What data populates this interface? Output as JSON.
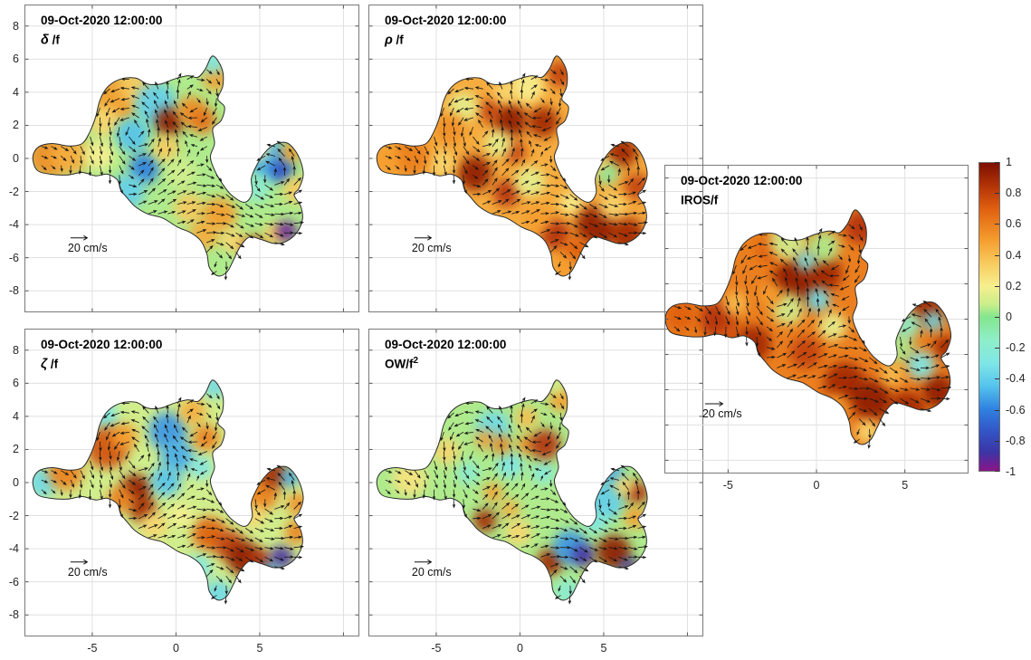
{
  "window": {
    "background": "#ffffff"
  },
  "figure": {
    "timestamp": "09-Oct-2020 12:00:00",
    "scale_label": "20 cm/s"
  },
  "panels": [
    {
      "id": "delta",
      "symbol": "δ",
      "label": " /f",
      "sup": ""
    },
    {
      "id": "rho",
      "symbol": "ρ",
      "label": " /f",
      "sup": ""
    },
    {
      "id": "zeta",
      "symbol": "ζ",
      "label": " /f",
      "sup": ""
    },
    {
      "id": "ow",
      "symbol": "",
      "label": "OW/f",
      "sup": "2"
    },
    {
      "id": "iros",
      "symbol": "",
      "label": "IROS/f",
      "sup": ""
    }
  ],
  "axes": {
    "x_tick_labels": [
      "-5",
      "0",
      "5"
    ],
    "y_tick_labels": [
      "8",
      "6",
      "4",
      "2",
      "0",
      "-2",
      "-4",
      "-6",
      "-8"
    ]
  },
  "colorbar": {
    "tick_labels": [
      "1",
      "0.8",
      "0.6",
      "0.4",
      "0.2",
      "0",
      "-0.2",
      "-0.4",
      "-0.6",
      "-0.8",
      "-1"
    ],
    "tick_values": [
      1,
      0.8,
      0.6,
      0.4,
      0.2,
      0,
      -0.2,
      -0.4,
      -0.6,
      -0.8,
      -1
    ],
    "colormap": [
      {
        "v": 1.0,
        "c": "#7c1000"
      },
      {
        "v": 0.85,
        "c": "#b33307"
      },
      {
        "v": 0.7,
        "c": "#e06010"
      },
      {
        "v": 0.5,
        "c": "#f59d2e"
      },
      {
        "v": 0.35,
        "c": "#f8ca5e"
      },
      {
        "v": 0.2,
        "c": "#f7ef8e"
      },
      {
        "v": 0.08,
        "c": "#c9ee8b"
      },
      {
        "v": 0.0,
        "c": "#84e68e"
      },
      {
        "v": -0.15,
        "c": "#8feec8"
      },
      {
        "v": -0.3,
        "c": "#7fe6e6"
      },
      {
        "v": -0.45,
        "c": "#55c3ec"
      },
      {
        "v": -0.6,
        "c": "#2f81e0"
      },
      {
        "v": -0.75,
        "c": "#3353c4"
      },
      {
        "v": -0.88,
        "c": "#3c35a5"
      },
      {
        "v": -1.0,
        "c": "#8a1589"
      }
    ]
  },
  "chart_data": {
    "type": "heatmap",
    "subtype": "quiver_vector_field_maps",
    "title": "09-Oct-2020 12:00:00",
    "value_range": [
      -1,
      1
    ],
    "x_ticks": [
      -5,
      0,
      5
    ],
    "y_ticks": [
      8,
      6,
      4,
      2,
      0,
      -2,
      -4,
      -6,
      -8
    ],
    "colorbar_ticks": [
      1,
      0.8,
      0.6,
      0.4,
      0.2,
      0,
      -0.2,
      -0.4,
      -0.6,
      -0.8,
      -1
    ],
    "velocity_scale": "20 cm/s",
    "legend_position": "right",
    "grid": true,
    "panels": [
      {
        "variable": "δ/f",
        "base": 0.05,
        "features": [
          [
            -7.6,
            0.1,
            1.1,
            0.55
          ],
          [
            -6.3,
            0.2,
            1.0,
            0.45
          ],
          [
            -3.6,
            3.6,
            1.2,
            0.5
          ],
          [
            -2.3,
            4.3,
            0.9,
            0.35
          ],
          [
            -4.3,
            2.2,
            0.8,
            0.3
          ],
          [
            -1.2,
            3.3,
            1.1,
            -0.4
          ],
          [
            -0.4,
            2.2,
            0.75,
            0.95
          ],
          [
            0.9,
            2.9,
            0.75,
            0.55
          ],
          [
            1.6,
            2.3,
            0.7,
            0.65
          ],
          [
            2.4,
            4.9,
            0.7,
            0.5
          ],
          [
            2.2,
            5.8,
            0.6,
            -0.3
          ],
          [
            -2.6,
            1.4,
            0.9,
            -0.45
          ],
          [
            -1.9,
            -0.6,
            0.8,
            -0.6
          ],
          [
            -2.9,
            -2.0,
            0.9,
            -0.4
          ],
          [
            -0.6,
            0.6,
            0.7,
            0.35
          ],
          [
            -4.6,
            0.2,
            0.8,
            0.2
          ],
          [
            0.3,
            -0.9,
            0.8,
            0.1
          ],
          [
            0.8,
            -3.0,
            0.8,
            0.35
          ],
          [
            2.6,
            -3.4,
            0.9,
            0.5
          ],
          [
            1.7,
            -4.6,
            0.8,
            0.45
          ],
          [
            3.4,
            -5.0,
            0.7,
            0.3
          ],
          [
            4.7,
            -5.5,
            0.7,
            0.8
          ],
          [
            5.9,
            -4.6,
            0.6,
            0.35
          ],
          [
            6.6,
            -4.4,
            0.55,
            -0.95
          ],
          [
            2.6,
            -6.6,
            0.8,
            0.05
          ],
          [
            5.6,
            -0.1,
            1.1,
            -0.5
          ],
          [
            6.3,
            -0.7,
            0.6,
            -0.75
          ],
          [
            6.9,
            0.4,
            0.55,
            0.5
          ],
          [
            7.2,
            -1.9,
            0.7,
            0.35
          ],
          [
            4.8,
            -1.8,
            0.7,
            -0.2
          ],
          [
            4.9,
            0.6,
            0.6,
            0.2
          ]
        ]
      },
      {
        "variable": "ρ/f",
        "base": 0.45,
        "features": [
          [
            -0.6,
            2.3,
            0.9,
            0.95
          ],
          [
            1.4,
            2.2,
            0.8,
            0.9
          ],
          [
            -1.8,
            2.9,
            0.6,
            0.8
          ],
          [
            -2.7,
            -0.9,
            0.9,
            0.95
          ],
          [
            -0.3,
            0.4,
            0.6,
            0.8
          ],
          [
            -0.8,
            -2.1,
            0.7,
            0.85
          ],
          [
            2.4,
            5.1,
            0.7,
            0.8
          ],
          [
            -3.4,
            3.1,
            0.8,
            0.15
          ],
          [
            0.4,
            4.4,
            0.9,
            0.2
          ],
          [
            -0.9,
            4.0,
            0.6,
            0.3
          ],
          [
            -1.3,
            0.9,
            0.7,
            0.15
          ],
          [
            0.6,
            -1.4,
            0.8,
            0.15
          ],
          [
            3.1,
            -2.7,
            0.6,
            0.2
          ],
          [
            -4.7,
            -0.3,
            0.7,
            0.3
          ],
          [
            -6.5,
            0.1,
            1.0,
            0.6
          ],
          [
            -8.0,
            -0.1,
            0.7,
            0.5
          ],
          [
            -4.2,
            1.8,
            0.8,
            0.55
          ],
          [
            6.1,
            0.4,
            0.8,
            0.9
          ],
          [
            5.2,
            -0.9,
            0.6,
            -0.05
          ],
          [
            7.0,
            -1.7,
            0.7,
            0.8
          ],
          [
            4.6,
            -4.1,
            1.1,
            0.95
          ],
          [
            6.4,
            -4.6,
            0.9,
            0.9
          ],
          [
            2.1,
            -4.6,
            0.8,
            0.85
          ],
          [
            3.4,
            -5.6,
            0.8,
            0.7
          ],
          [
            1.0,
            -3.6,
            0.7,
            0.5
          ],
          [
            2.7,
            -6.8,
            0.7,
            0.5
          ],
          [
            5.5,
            -2.9,
            0.7,
            0.3
          ],
          [
            4.4,
            -0.2,
            0.6,
            0.3
          ]
        ]
      },
      {
        "variable": "ζ/f",
        "base": 0.1,
        "features": [
          [
            -4.2,
            4.1,
            0.9,
            -0.3
          ],
          [
            -2.7,
            4.4,
            0.8,
            0.1
          ],
          [
            -8.0,
            0.0,
            0.8,
            -0.35
          ],
          [
            -6.6,
            0.6,
            0.9,
            0.6
          ],
          [
            -4.1,
            2.1,
            1.1,
            0.75
          ],
          [
            -3.1,
            2.8,
            0.7,
            0.5
          ],
          [
            -2.4,
            -0.4,
            0.8,
            0.95
          ],
          [
            -2.0,
            -1.6,
            0.7,
            0.9
          ],
          [
            -3.3,
            -1.0,
            0.7,
            0.6
          ],
          [
            -0.5,
            3.1,
            1.0,
            -0.55
          ],
          [
            0.1,
            1.6,
            0.9,
            -0.5
          ],
          [
            -0.6,
            0.1,
            0.8,
            -0.45
          ],
          [
            1.0,
            4.3,
            0.7,
            0.45
          ],
          [
            2.3,
            5.8,
            0.6,
            -0.35
          ],
          [
            1.8,
            2.7,
            0.7,
            0.6
          ],
          [
            1.5,
            0.9,
            0.6,
            -0.3
          ],
          [
            -1.3,
            -2.6,
            0.7,
            0.3
          ],
          [
            2.0,
            -3.1,
            0.9,
            0.7
          ],
          [
            3.2,
            -3.8,
            0.8,
            0.8
          ],
          [
            4.1,
            -4.6,
            0.9,
            0.95
          ],
          [
            5.0,
            -4.9,
            0.7,
            0.85
          ],
          [
            6.3,
            -4.5,
            0.6,
            -0.9
          ],
          [
            5.6,
            -5.4,
            0.5,
            -0.5
          ],
          [
            2.5,
            -6.8,
            0.8,
            -0.35
          ],
          [
            1.3,
            -5.2,
            0.7,
            -0.3
          ],
          [
            5.0,
            -0.6,
            1.0,
            0.6
          ],
          [
            5.9,
            0.5,
            0.7,
            0.9
          ],
          [
            6.8,
            0.3,
            0.5,
            -0.5
          ],
          [
            7.3,
            -1.3,
            0.6,
            0.55
          ],
          [
            7.2,
            -3.0,
            0.6,
            0.6
          ],
          [
            4.6,
            -2.0,
            0.6,
            0.3
          ],
          [
            0.3,
            -2.0,
            0.6,
            0.2
          ]
        ]
      },
      {
        "variable": "OW/f^2",
        "base": 0.05,
        "features": [
          [
            -1.6,
            3.3,
            0.9,
            -0.35
          ],
          [
            -0.6,
            1.1,
            0.7,
            -0.3
          ],
          [
            -3.1,
            0.6,
            0.6,
            -0.2
          ],
          [
            1.4,
            0.6,
            0.6,
            -0.25
          ],
          [
            -1.1,
            2.3,
            0.5,
            0.6
          ],
          [
            -2.1,
            2.6,
            0.5,
            0.5
          ],
          [
            0.4,
            2.3,
            0.5,
            0.55
          ],
          [
            1.5,
            2.3,
            0.8,
            0.85
          ],
          [
            -1.6,
            -0.6,
            0.5,
            0.5
          ],
          [
            -0.6,
            -1.6,
            0.5,
            0.45
          ],
          [
            0.4,
            3.9,
            0.6,
            0.4
          ],
          [
            -2.1,
            -2.3,
            0.6,
            0.9
          ],
          [
            2.5,
            5.1,
            0.7,
            0.5
          ],
          [
            2.2,
            5.9,
            0.5,
            0.1
          ],
          [
            -6.6,
            0.2,
            0.9,
            0.25
          ],
          [
            -4.4,
            1.9,
            0.7,
            0.3
          ],
          [
            -0.1,
            -3.0,
            0.7,
            0.3
          ],
          [
            1.8,
            -4.8,
            0.7,
            0.9
          ],
          [
            3.0,
            -3.9,
            0.9,
            -0.55
          ],
          [
            3.8,
            -4.4,
            0.6,
            -0.9
          ],
          [
            5.6,
            -4.2,
            0.9,
            0.95
          ],
          [
            6.5,
            -5.1,
            0.5,
            -0.85
          ],
          [
            6.9,
            -5.7,
            0.5,
            0.6
          ],
          [
            4.6,
            -5.7,
            0.6,
            0.6
          ],
          [
            2.8,
            -6.6,
            0.7,
            -0.2
          ],
          [
            5.1,
            -1.1,
            1.0,
            -0.4
          ],
          [
            5.6,
            0.4,
            0.6,
            -0.5
          ],
          [
            7.0,
            -0.6,
            0.6,
            0.85
          ],
          [
            6.9,
            -2.1,
            0.6,
            0.5
          ],
          [
            4.5,
            -2.4,
            0.6,
            -0.3
          ],
          [
            6.2,
            -0.2,
            0.5,
            0.3
          ]
        ]
      },
      {
        "variable": "IROS/f",
        "base": 0.6,
        "features": [
          [
            -1.1,
            2.1,
            1.2,
            0.95
          ],
          [
            0.4,
            2.6,
            0.9,
            0.9
          ],
          [
            -5.6,
            0.0,
            0.9,
            0.85
          ],
          [
            -7.7,
            0.2,
            0.8,
            0.7
          ],
          [
            -3.6,
            -1.4,
            0.9,
            0.9
          ],
          [
            -2.6,
            3.9,
            0.7,
            0.7
          ],
          [
            2.5,
            5.2,
            0.8,
            0.85
          ],
          [
            -1.6,
            4.4,
            0.9,
            0.1
          ],
          [
            0.4,
            4.1,
            0.8,
            0.05
          ],
          [
            -0.6,
            3.3,
            0.5,
            -0.3
          ],
          [
            0.1,
            1.1,
            0.6,
            -0.35
          ],
          [
            -1.6,
            0.6,
            0.8,
            0.1
          ],
          [
            0.9,
            -0.4,
            0.7,
            0.15
          ],
          [
            -0.6,
            -1.9,
            0.8,
            0.8
          ],
          [
            -4.6,
            0.9,
            0.6,
            0.4
          ],
          [
            -2.6,
            1.4,
            0.6,
            0.5
          ],
          [
            1.6,
            -3.6,
            1.0,
            0.9
          ],
          [
            3.1,
            -4.6,
            1.0,
            0.95
          ],
          [
            5.1,
            -5.1,
            0.9,
            0.9
          ],
          [
            6.9,
            -4.1,
            0.8,
            0.95
          ],
          [
            7.3,
            -1.6,
            0.6,
            0.9
          ],
          [
            6.3,
            0.6,
            0.8,
            0.9
          ],
          [
            4.6,
            -1.6,
            0.8,
            0.05
          ],
          [
            5.1,
            -0.3,
            0.7,
            -0.15
          ],
          [
            5.9,
            -2.6,
            0.7,
            -0.3
          ],
          [
            6.6,
            -0.1,
            0.5,
            -0.35
          ],
          [
            2.9,
            -6.4,
            0.6,
            0.3
          ],
          [
            1.1,
            -4.9,
            0.6,
            0.5
          ],
          [
            4.3,
            -3.1,
            0.6,
            0.4
          ],
          [
            -4.9,
            -1.0,
            0.6,
            0.75
          ]
        ]
      }
    ]
  }
}
